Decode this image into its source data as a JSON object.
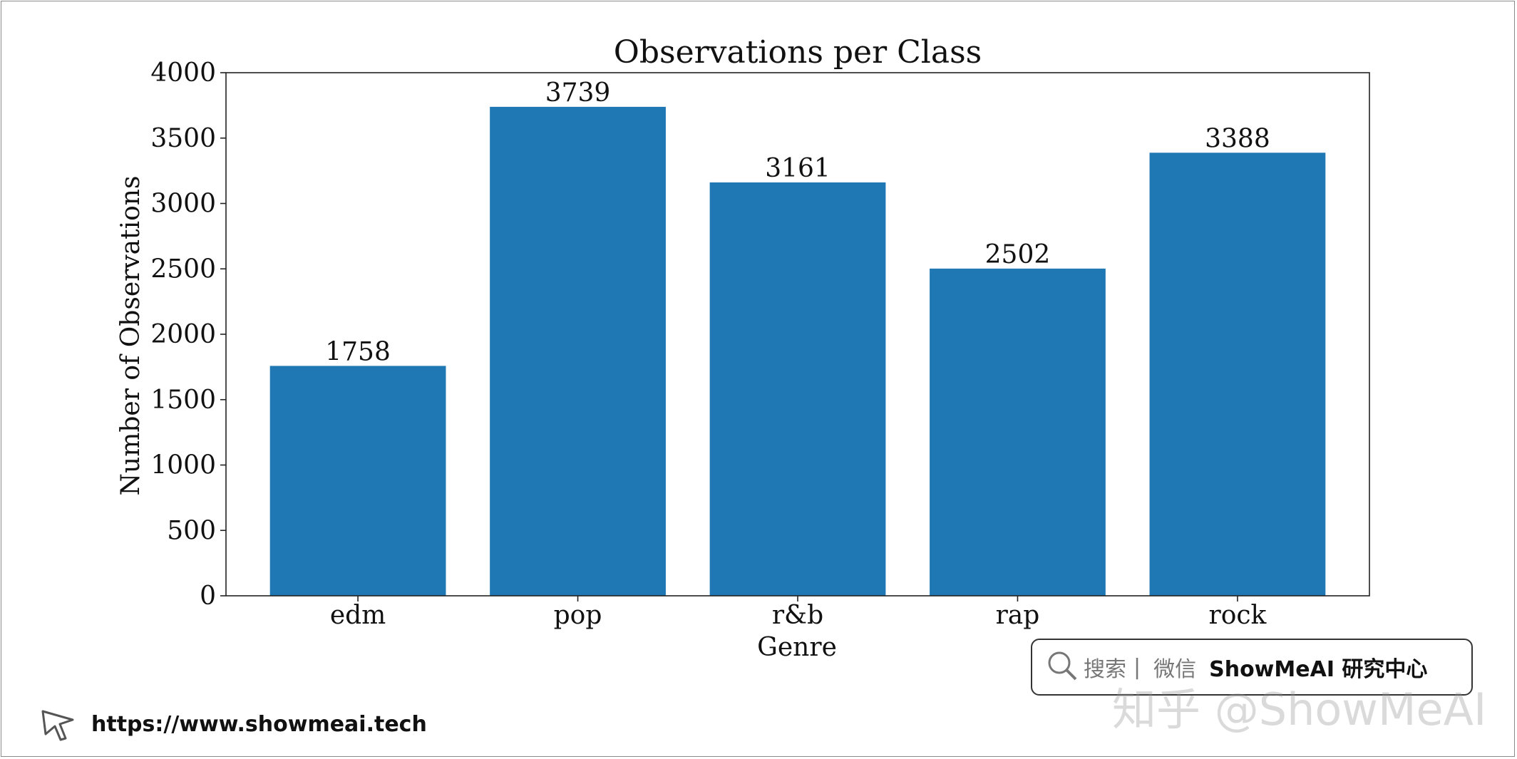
{
  "chart_data": {
    "type": "bar",
    "title": "Observations per Class",
    "xlabel": "Genre",
    "ylabel": "Number of Observations",
    "categories": [
      "edm",
      "pop",
      "r&b",
      "rap",
      "rock"
    ],
    "values": [
      1758,
      3739,
      3161,
      2502,
      3388
    ],
    "data_labels": [
      "1758",
      "3739",
      "3161",
      "2502",
      "3388"
    ],
    "ylim": [
      0,
      4000
    ],
    "yticks": [
      0,
      500,
      1000,
      1500,
      2000,
      2500,
      3000,
      3500,
      4000
    ],
    "grid": false,
    "bar_color": "#1f77b4"
  },
  "watermark": {
    "search_label": "搜索",
    "wechat_label": "微信",
    "brand": "ShowMeAI 研究中心",
    "zhihu": "知乎 @ShowMeAI"
  },
  "footer": {
    "url": "https://www.showmeai.tech"
  }
}
